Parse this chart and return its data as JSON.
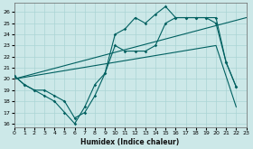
{
  "xlabel": "Humidex (Indice chaleur)",
  "bg_color": "#cce8e8",
  "grid_color": "#aad4d4",
  "line_color": "#006060",
  "xlim": [
    0,
    23
  ],
  "ylim": [
    15.7,
    26.8
  ],
  "yticks": [
    16,
    17,
    18,
    19,
    20,
    21,
    22,
    23,
    24,
    25,
    26
  ],
  "xticks": [
    0,
    1,
    2,
    3,
    4,
    5,
    6,
    7,
    8,
    9,
    10,
    11,
    12,
    13,
    14,
    15,
    16,
    17,
    18,
    19,
    20,
    21,
    22,
    23
  ],
  "line1_x": [
    0,
    1,
    2,
    3,
    4,
    5,
    6,
    7,
    8,
    9,
    10,
    11,
    12,
    13,
    14,
    15,
    16,
    17,
    18,
    19,
    20,
    21,
    22
  ],
  "line1_y": [
    20.3,
    19.5,
    19.0,
    18.5,
    18.0,
    17.0,
    16.0,
    17.5,
    19.5,
    20.5,
    24.0,
    24.5,
    25.5,
    25.0,
    25.8,
    26.5,
    25.5,
    25.5,
    25.5,
    25.5,
    25.0,
    21.5,
    19.3
  ],
  "line2_x": [
    0,
    1,
    2,
    3,
    4,
    5,
    6,
    7,
    8,
    9,
    10,
    11,
    12,
    13,
    14,
    15,
    16,
    17,
    18,
    19,
    20,
    21,
    22
  ],
  "line2_y": [
    20.3,
    19.5,
    19.0,
    19.0,
    18.5,
    18.0,
    16.5,
    17.0,
    18.5,
    20.5,
    23.0,
    22.5,
    22.5,
    22.5,
    23.0,
    25.0,
    25.5,
    25.5,
    25.5,
    25.5,
    25.5,
    21.5,
    19.3
  ],
  "trend1_x": [
    0,
    23
  ],
  "trend1_y": [
    20.0,
    25.5
  ],
  "trend2_x": [
    0,
    20,
    22
  ],
  "trend2_y": [
    20.0,
    23.0,
    17.5
  ]
}
